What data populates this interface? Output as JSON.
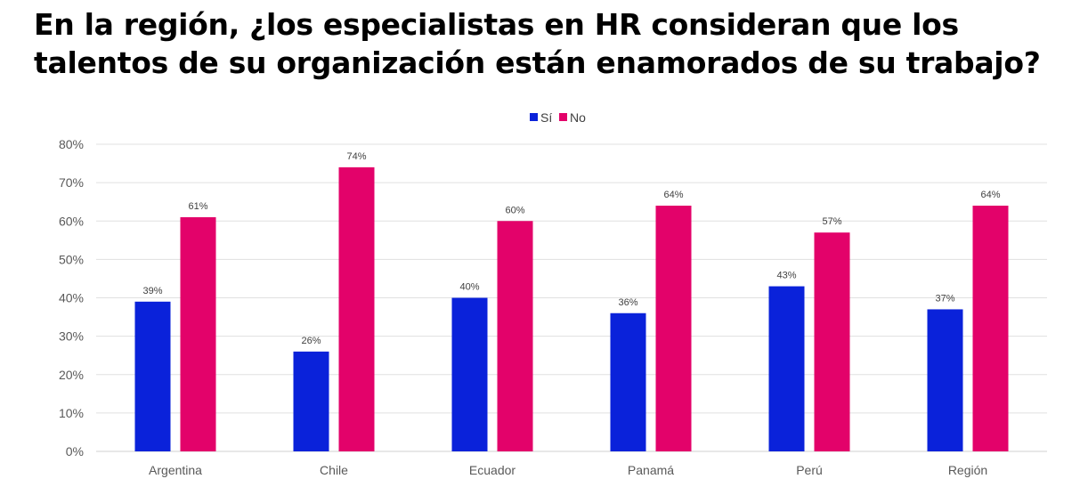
{
  "chart_data": {
    "type": "bar",
    "title": "En la región, ¿los especialistas en HR consideran que los talentos de su organización están enamorados de su trabajo?",
    "title_lines": [
      "En la región, ¿los especialistas en HR consideran que los",
      "talentos de su organización están enamorados de su trabajo?"
    ],
    "categories": [
      "Argentina",
      "Chile",
      "Ecuador",
      "Panamá",
      "Perú",
      "Región"
    ],
    "series": [
      {
        "name": "Sí",
        "color": "#0A22DA",
        "values": [
          39,
          26,
          40,
          36,
          43,
          37
        ],
        "labels": [
          "39%",
          "26%",
          "40%",
          "36%",
          "43%",
          "37%"
        ]
      },
      {
        "name": "No",
        "color": "#E3026A",
        "values": [
          61,
          74,
          60,
          64,
          57,
          64
        ],
        "labels": [
          "61%",
          "74%",
          "60%",
          "64%",
          "57%",
          "64%"
        ]
      }
    ],
    "xlabel": "",
    "ylabel": "",
    "ylim": [
      0,
      80
    ],
    "yticks": [
      0,
      10,
      20,
      30,
      40,
      50,
      60,
      70,
      80
    ],
    "ytick_labels": [
      "0%",
      "10%",
      "20%",
      "30%",
      "40%",
      "50%",
      "60%",
      "70%",
      "80%"
    ],
    "grid": true,
    "legend_position": "top-center"
  }
}
